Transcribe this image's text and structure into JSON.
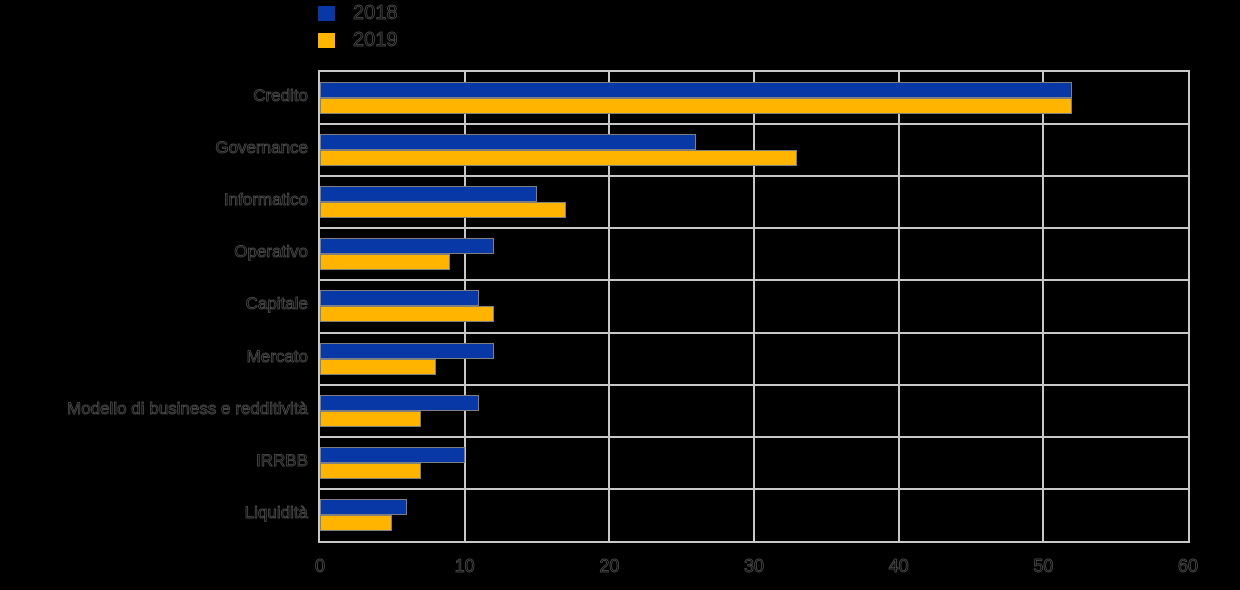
{
  "chart_data": {
    "type": "bar",
    "orientation": "horizontal",
    "title": "",
    "xlabel": "",
    "ylabel": "",
    "categories": [
      "Credito",
      "Governance",
      "Informatico",
      "Operativo",
      "Capitale",
      "Mercato",
      "Modello di business e redditività",
      "IRRBB",
      "Liquidità"
    ],
    "series": [
      {
        "name": "2018",
        "color": "#0837a6",
        "values": [
          52,
          26,
          15,
          12,
          11,
          12,
          11,
          10,
          6
        ]
      },
      {
        "name": "2019",
        "color": "#ffb400",
        "values": [
          52,
          33,
          17,
          9,
          12,
          8,
          7,
          7,
          5
        ]
      }
    ],
    "xlim": [
      0,
      60
    ],
    "xticks": [
      0,
      10,
      20,
      30,
      40,
      50,
      60
    ],
    "grid": true,
    "legend_position": "top-left",
    "colors": {
      "background": "#000000",
      "gridline": "#c8c8c8",
      "bar_border": "#7f7f7f",
      "text": "#000000"
    }
  }
}
